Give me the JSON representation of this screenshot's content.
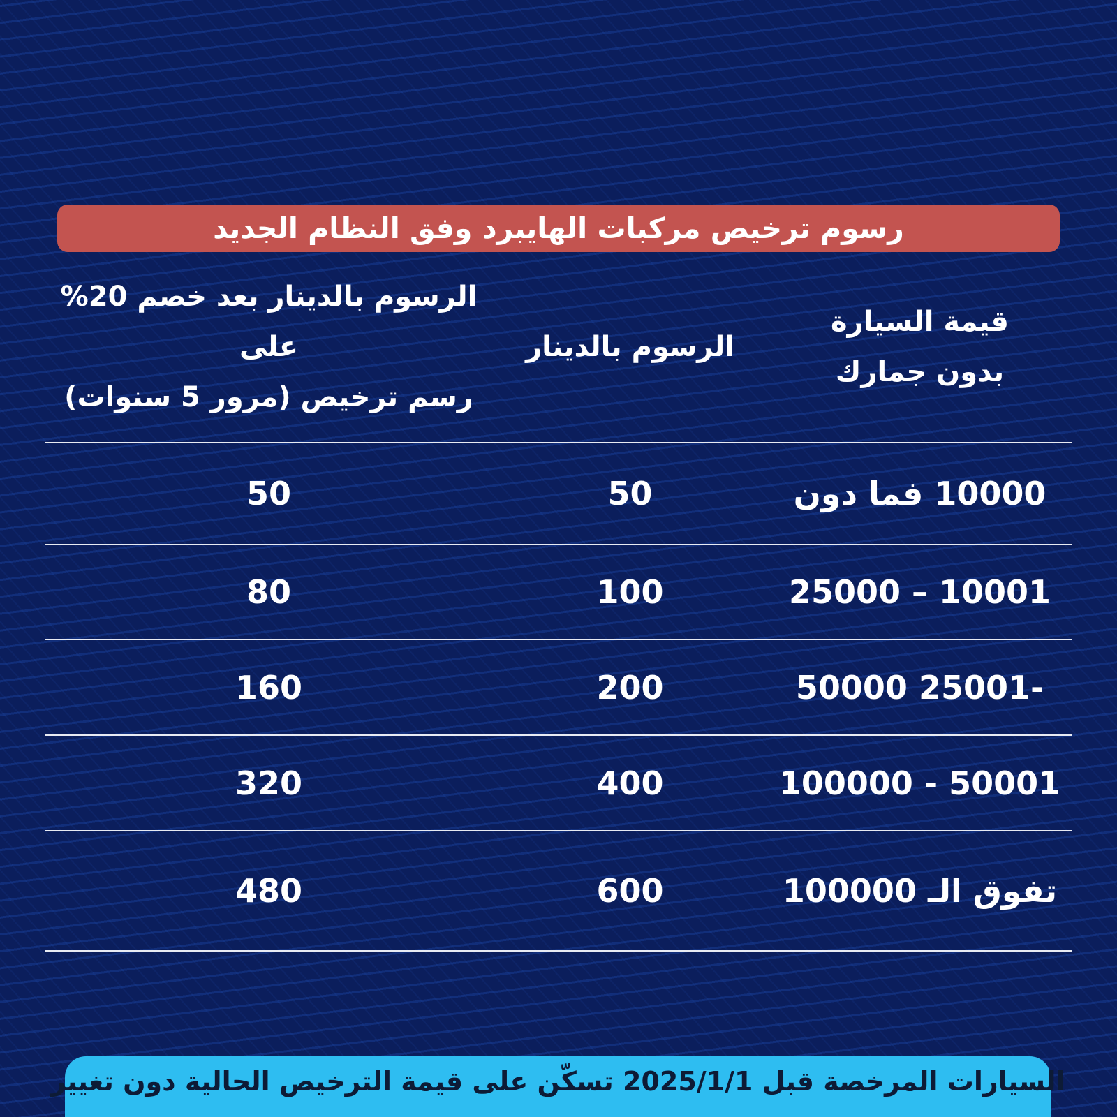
{
  "title_banner": {
    "text": "رسوم ترخيص مركبات الهايبرد وفق النظام الجديد"
  },
  "table": {
    "columns": [
      {
        "id": "car_value",
        "label_lines": [
          "قيمة السيارة",
          "بدون جمارك"
        ]
      },
      {
        "id": "fee_dinar",
        "label_lines": [
          "الرسوم بالدينار"
        ]
      },
      {
        "id": "fee_discounted",
        "label_lines": [
          "الرسوم بالدينار بعد خصم 20% على",
          "رسم ترخيص (مرور 5 سنوات)"
        ]
      }
    ],
    "rows": [
      {
        "value": "10000 فما دون",
        "fee": "50",
        "discounted": "50"
      },
      {
        "value": "10001 – 25000",
        "fee": "100",
        "discounted": "80"
      },
      {
        "value": "-25001 50000",
        "fee": "200",
        "discounted": "160"
      },
      {
        "value": "50001 - 100000",
        "fee": "400",
        "discounted": "320"
      },
      {
        "value": "تفوق الـ 100000",
        "fee": "600",
        "discounted": "480"
      }
    ]
  },
  "footer_banner": {
    "text": "السيارات المرخصة قبل 2025/1/1 تسكّن على قيمة الترخيص الحالية دون تغيير"
  },
  "chart_data": {
    "type": "table",
    "title": "رسوم ترخيص مركبات الهايبرد وفق النظام الجديد",
    "columns": [
      "قيمة السيارة بدون جمارك",
      "الرسوم بالدينار",
      "الرسوم بالدينار بعد خصم 20% على رسم ترخيص (مرور 5 سنوات)"
    ],
    "rows": [
      [
        "10000 فما دون",
        50,
        50
      ],
      [
        "10001 – 25000",
        100,
        80
      ],
      [
        "25001 – 50000",
        200,
        160
      ],
      [
        "50001 – 100000",
        400,
        320
      ],
      [
        "تفوق الـ 100000",
        600,
        480
      ]
    ],
    "footnote": "السيارات المرخصة قبل 2025/1/1 تسكّن على قيمة الترخيص الحالية دون تغيير"
  },
  "colors": {
    "bg_navy": "#0b1e5c",
    "accent_red": "#c35450",
    "banner_blue": "#2ebdf1",
    "text_white": "#ffffff",
    "footer_text": "#0d1b36",
    "divider": "#e8ebf3"
  }
}
